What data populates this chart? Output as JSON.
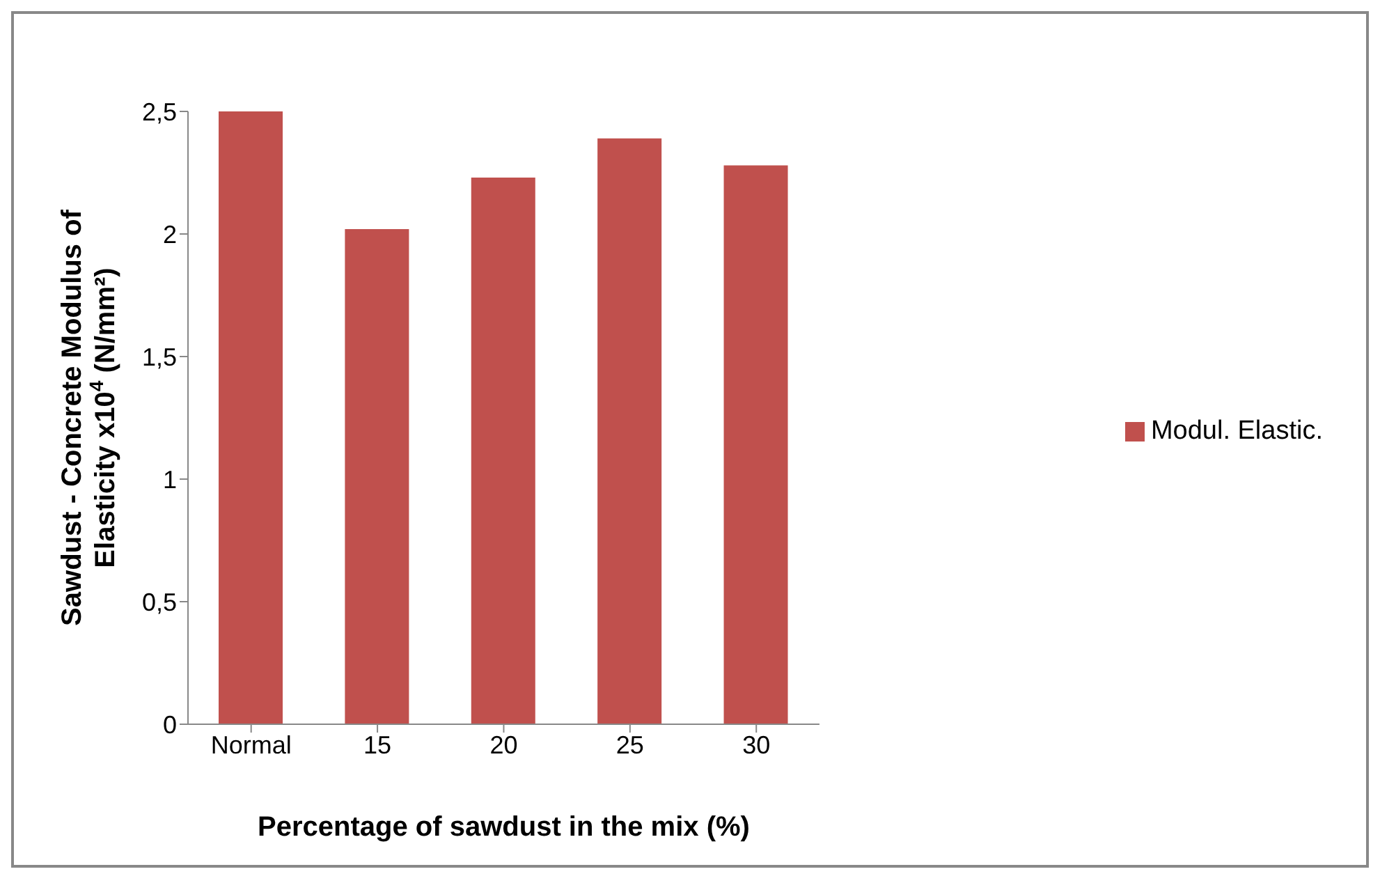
{
  "chart_data": {
    "type": "bar",
    "categories": [
      "Normal",
      "15",
      "20",
      "25",
      "30"
    ],
    "series": [
      {
        "name": "Modul. Elastic.",
        "color": "#c0504d",
        "values": [
          2.5,
          2.02,
          2.23,
          2.39,
          2.28
        ]
      }
    ],
    "xlabel": "Percentage of sawdust in the mix (%)",
    "ylabel": "Sawdust - Concrete Modulus of Elasticity x10$^{4}$ (N/mm²)",
    "ylim": [
      0,
      2.5
    ],
    "yticks": [
      0,
      {
        "value": 0.5,
        "label": "0,5"
      },
      1,
      {
        "value": 1.5,
        "label": "1,5"
      },
      2,
      {
        "value": 2.5,
        "label": "2,5"
      }
    ],
    "grid": false,
    "legend": "right"
  }
}
